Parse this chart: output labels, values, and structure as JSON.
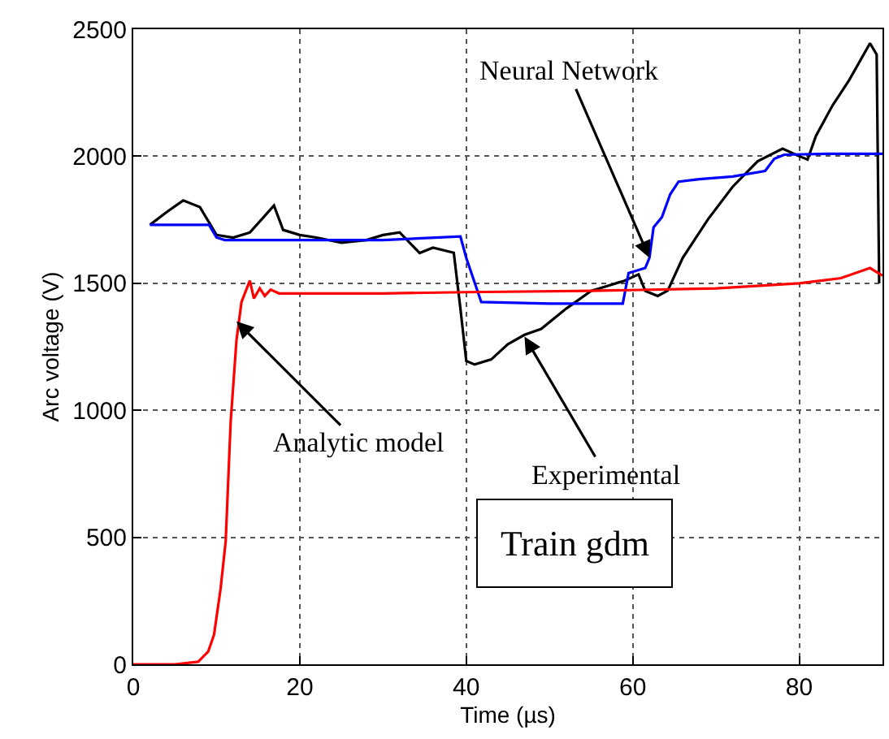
{
  "chart_data": {
    "type": "line",
    "xlabel": "Time (µs)",
    "ylabel": "Arc voltage (V)",
    "xlim": [
      0,
      90
    ],
    "xticks": [
      0,
      20,
      40,
      60,
      80
    ],
    "ylim": [
      0,
      2500
    ],
    "yticks": [
      0,
      500,
      1000,
      1500,
      2000,
      2500
    ],
    "grid": true,
    "line_style": "solid",
    "series": [
      {
        "color": "#000000",
        "x": [
          2,
          4,
          6,
          8,
          10,
          12,
          14,
          16.9,
          18,
          20,
          22,
          25,
          28,
          30,
          32,
          34.4,
          36,
          38.5,
          39.3,
          40,
          41,
          43,
          45,
          47,
          49,
          52,
          55,
          57,
          59,
          60.7,
          61.5,
          63,
          64.2,
          66,
          69,
          72,
          75,
          78,
          80,
          81,
          82,
          84,
          86,
          88.5,
          89.3,
          89.6
        ],
        "values": [
          1730,
          1780,
          1826,
          1800,
          1690,
          1680,
          1700,
          1806,
          1710,
          1690,
          1680,
          1660,
          1670,
          1690,
          1700,
          1619,
          1640,
          1620,
          1400,
          1194,
          1180,
          1200,
          1260,
          1297,
          1320,
          1400,
          1470,
          1490,
          1510,
          1535,
          1470,
          1450,
          1471,
          1600,
          1750,
          1880,
          1980,
          2030,
          2000,
          1987,
          2080,
          2200,
          2300,
          2445,
          2400,
          1500
        ]
      },
      {
        "color": "#0000ff",
        "x": [
          2,
          9.1,
          10,
          11,
          20,
          30,
          39.3,
          40,
          41.8,
          50,
          58.8,
          59.5,
          61.5,
          62,
          62.5,
          63.5,
          64.5,
          65.5,
          68,
          72,
          75.9,
          77,
          78.2,
          84,
          90
        ],
        "values": [
          1730,
          1730,
          1680,
          1670,
          1670,
          1670,
          1684,
          1600,
          1426,
          1420,
          1420,
          1540,
          1560,
          1600,
          1720,
          1760,
          1850,
          1900,
          1910,
          1920,
          1942,
          1990,
          2006,
          2010,
          2010
        ]
      },
      {
        "color": "#ff0000",
        "x": [
          0,
          5,
          7.8,
          9,
          9.7,
          10.5,
          11.1,
          11.7,
          12.4,
          13,
          14,
          14.5,
          15.2,
          15.8,
          16.5,
          17.5,
          20,
          30,
          40,
          55,
          70,
          80,
          85,
          88.5,
          90
        ],
        "values": [
          0,
          0,
          10,
          50,
          116,
          300,
          484,
          955,
          1277,
          1426,
          1510,
          1440,
          1480,
          1450,
          1475,
          1460,
          1460,
          1460,
          1465,
          1470,
          1480,
          1500,
          1520,
          1560,
          1530
        ]
      }
    ],
    "annotations": [
      {
        "text": "Neural Network",
        "x": 62,
        "y": 1600
      },
      {
        "text": "Experimental",
        "x": 47,
        "y": 1290
      },
      {
        "text": "Analytic model",
        "x": 12.4,
        "y": 1350
      },
      "Train gdm"
    ]
  }
}
